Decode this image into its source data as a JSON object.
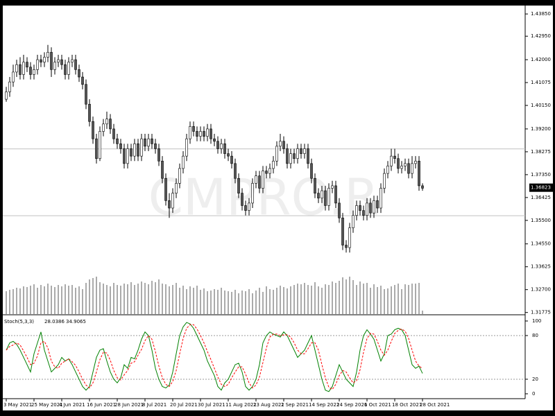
{
  "chart_data": [
    {
      "type": "candlestick",
      "watermark": "CMPRO.R",
      "current_price": 1.36823,
      "up_color": "#ffffff",
      "down_color": "#555555",
      "ylim": [
        1.3171,
        1.4419
      ],
      "yticks": [
        {
          "value": 1.4385,
          "label": "1.43850"
        },
        {
          "value": 1.4295,
          "label": "1.42950"
        },
        {
          "value": 1.42,
          "label": "1.42000"
        },
        1.41075,
        {
          "value": 1.4015,
          "label": "1.40150"
        },
        {
          "value": 1.392,
          "label": "1.39200"
        },
        1.38275,
        {
          "value": 1.3735,
          "label": "1.37350"
        },
        1.36425,
        {
          "value": 1.355,
          "label": "1.35500"
        },
        {
          "value": 1.3455,
          "label": "1.34550"
        },
        1.33625,
        {
          "value": 1.327,
          "label": "1.32700"
        },
        1.31775
      ],
      "hlines": [
        1.3839,
        1.3569
      ],
      "xticks": [
        {
          "value": 0,
          "label": "3 May 2021"
        },
        {
          "value": 8,
          "label": "25 May 2021"
        },
        {
          "value": 16,
          "label": "4 Jun 2021"
        },
        {
          "value": 24,
          "label": "16 Jun 2021"
        },
        {
          "value": 32,
          "label": "28 Jun 2021"
        },
        {
          "value": 40,
          "label": "8 Jul 2021"
        },
        {
          "value": 48,
          "label": "20 Jul 2021"
        },
        {
          "value": 56,
          "label": "30 Jul 2021"
        },
        {
          "value": 64,
          "label": "11 Aug 2021"
        },
        {
          "value": 72,
          "label": "23 Aug 2021"
        },
        {
          "value": 80,
          "label": "2 Sep 2021"
        },
        {
          "value": 88,
          "label": "14 Sep 2021"
        },
        {
          "value": 96,
          "label": "24 Sep 2021"
        },
        {
          "value": 104,
          "label": "6 Oct 2021"
        },
        {
          "value": 112,
          "label": "18 Oct 2021"
        },
        {
          "value": 120,
          "label": "28 Oct 2021"
        }
      ],
      "open": [
        1.404,
        1.407,
        1.411,
        1.415,
        1.418,
        1.414,
        1.419,
        1.417,
        1.414,
        1.416,
        1.42,
        1.419,
        1.421,
        1.423,
        1.416,
        1.419,
        1.42,
        1.418,
        1.414,
        1.419,
        1.42,
        1.416,
        1.413,
        1.41,
        1.402,
        1.395,
        1.388,
        1.38,
        1.391,
        1.394,
        1.396,
        1.392,
        1.388,
        1.386,
        1.384,
        1.378,
        1.384,
        1.381,
        1.386,
        1.381,
        1.388,
        1.385,
        1.388,
        1.386,
        1.384,
        1.379,
        1.372,
        1.363,
        1.36,
        1.366,
        1.37,
        1.376,
        1.381,
        1.388,
        1.393,
        1.391,
        1.389,
        1.391,
        1.389,
        1.392,
        1.388,
        1.387,
        1.384,
        1.386,
        1.382,
        1.381,
        1.378,
        1.372,
        1.366,
        1.361,
        1.359,
        1.362,
        1.37,
        1.373,
        1.368,
        1.375,
        1.374,
        1.376,
        1.379,
        1.385,
        1.387,
        1.384,
        1.378,
        1.382,
        1.38,
        1.384,
        1.382,
        1.384,
        1.378,
        1.372,
        1.366,
        1.364,
        1.367,
        1.361,
        1.368,
        1.369,
        1.362,
        1.356,
        1.345,
        1.344,
        1.352,
        1.357,
        1.361,
        1.359,
        1.357,
        1.362,
        1.358,
        1.363,
        1.36,
        1.368,
        1.374,
        1.377,
        1.381,
        1.38,
        1.376,
        1.377,
        1.378,
        1.374,
        1.378,
        1.379,
        1.369
      ],
      "high": [
        1.409,
        1.413,
        1.418,
        1.42,
        1.421,
        1.422,
        1.421,
        1.419,
        1.418,
        1.422,
        1.422,
        1.423,
        1.426,
        1.425,
        1.421,
        1.422,
        1.422,
        1.42,
        1.421,
        1.422,
        1.422,
        1.418,
        1.415,
        1.412,
        1.404,
        1.397,
        1.39,
        1.393,
        1.396,
        1.399,
        1.398,
        1.394,
        1.39,
        1.388,
        1.386,
        1.386,
        1.386,
        1.388,
        1.388,
        1.39,
        1.39,
        1.39,
        1.39,
        1.388,
        1.386,
        1.381,
        1.374,
        1.366,
        1.368,
        1.372,
        1.378,
        1.383,
        1.39,
        1.395,
        1.395,
        1.393,
        1.393,
        1.393,
        1.394,
        1.394,
        1.39,
        1.389,
        1.388,
        1.388,
        1.384,
        1.383,
        1.38,
        1.374,
        1.368,
        1.363,
        1.364,
        1.372,
        1.375,
        1.375,
        1.377,
        1.377,
        1.378,
        1.381,
        1.387,
        1.39,
        1.389,
        1.386,
        1.384,
        1.384,
        1.386,
        1.386,
        1.386,
        1.386,
        1.38,
        1.374,
        1.368,
        1.369,
        1.369,
        1.37,
        1.371,
        1.371,
        1.364,
        1.358,
        1.347,
        1.354,
        1.359,
        1.363,
        1.363,
        1.361,
        1.364,
        1.364,
        1.365,
        1.365,
        1.37,
        1.376,
        1.379,
        1.384,
        1.384,
        1.382,
        1.379,
        1.38,
        1.38,
        1.381,
        1.381,
        1.381,
        1.37
      ],
      "low": [
        1.403,
        1.405,
        1.409,
        1.413,
        1.412,
        1.412,
        1.415,
        1.412,
        1.412,
        1.414,
        1.417,
        1.417,
        1.419,
        1.413,
        1.414,
        1.417,
        1.416,
        1.412,
        1.412,
        1.417,
        1.414,
        1.411,
        1.408,
        1.4,
        1.393,
        1.386,
        1.378,
        1.379,
        1.389,
        1.392,
        1.39,
        1.386,
        1.384,
        1.382,
        1.376,
        1.376,
        1.379,
        1.379,
        1.379,
        1.379,
        1.383,
        1.383,
        1.384,
        1.382,
        1.377,
        1.37,
        1.361,
        1.356,
        1.358,
        1.364,
        1.368,
        1.374,
        1.379,
        1.386,
        1.389,
        1.387,
        1.387,
        1.387,
        1.387,
        1.386,
        1.385,
        1.382,
        1.382,
        1.38,
        1.379,
        1.376,
        1.37,
        1.364,
        1.359,
        1.357,
        1.357,
        1.36,
        1.368,
        1.366,
        1.366,
        1.372,
        1.372,
        1.374,
        1.377,
        1.383,
        1.382,
        1.376,
        1.376,
        1.378,
        1.378,
        1.38,
        1.38,
        1.376,
        1.37,
        1.364,
        1.362,
        1.362,
        1.359,
        1.359,
        1.366,
        1.36,
        1.354,
        1.343,
        1.342,
        1.342,
        1.35,
        1.355,
        1.357,
        1.355,
        1.355,
        1.356,
        1.356,
        1.358,
        1.358,
        1.366,
        1.372,
        1.375,
        1.378,
        1.374,
        1.374,
        1.375,
        1.372,
        1.372,
        1.376,
        1.367,
        1.367
      ],
      "close": [
        1.407,
        1.411,
        1.415,
        1.418,
        1.414,
        1.419,
        1.417,
        1.414,
        1.416,
        1.42,
        1.419,
        1.421,
        1.423,
        1.416,
        1.419,
        1.42,
        1.418,
        1.414,
        1.419,
        1.42,
        1.416,
        1.413,
        1.41,
        1.402,
        1.395,
        1.388,
        1.38,
        1.391,
        1.394,
        1.396,
        1.392,
        1.388,
        1.386,
        1.384,
        1.378,
        1.384,
        1.381,
        1.386,
        1.381,
        1.388,
        1.385,
        1.388,
        1.386,
        1.384,
        1.379,
        1.372,
        1.363,
        1.36,
        1.366,
        1.37,
        1.376,
        1.381,
        1.388,
        1.393,
        1.391,
        1.389,
        1.391,
        1.389,
        1.392,
        1.388,
        1.387,
        1.384,
        1.386,
        1.382,
        1.381,
        1.378,
        1.372,
        1.366,
        1.361,
        1.359,
        1.362,
        1.37,
        1.373,
        1.368,
        1.375,
        1.374,
        1.376,
        1.379,
        1.385,
        1.387,
        1.384,
        1.378,
        1.382,
        1.38,
        1.384,
        1.382,
        1.384,
        1.378,
        1.372,
        1.366,
        1.364,
        1.367,
        1.361,
        1.368,
        1.369,
        1.362,
        1.356,
        1.345,
        1.344,
        1.352,
        1.357,
        1.361,
        1.359,
        1.357,
        1.362,
        1.358,
        1.363,
        1.36,
        1.368,
        1.374,
        1.377,
        1.381,
        1.38,
        1.376,
        1.377,
        1.378,
        1.374,
        1.378,
        1.379,
        1.369,
        1.368
      ],
      "volume": [
        33,
        35,
        36,
        38,
        37,
        40,
        39,
        41,
        43,
        38,
        42,
        40,
        44,
        41,
        39,
        42,
        40,
        43,
        41,
        42,
        38,
        40,
        36,
        45,
        50,
        52,
        54,
        46,
        44,
        42,
        40,
        45,
        42,
        41,
        44,
        43,
        46,
        42,
        44,
        47,
        45,
        43,
        48,
        46,
        50,
        44,
        43,
        40,
        42,
        45,
        38,
        41,
        36,
        40,
        38,
        41,
        35,
        37,
        33,
        34,
        36,
        35,
        38,
        34,
        33,
        32,
        35,
        30,
        34,
        33,
        36,
        30,
        34,
        38,
        32,
        40,
        36,
        35,
        38,
        41,
        39,
        37,
        40,
        42,
        44,
        43,
        45,
        42,
        41,
        46,
        40,
        38,
        43,
        42,
        47,
        45,
        48,
        53,
        50,
        54,
        49,
        42,
        47,
        44,
        45,
        38,
        43,
        39,
        41,
        36,
        37,
        40,
        42,
        44,
        36,
        43,
        42,
        44,
        44,
        45,
        5
      ]
    },
    {
      "type": "line",
      "title": "Stoch(5,3,3)",
      "ylim": [
        -6.7,
        107.6
      ],
      "yticks": [
        100,
        80,
        20,
        0
      ],
      "levels": [
        80,
        20
      ],
      "series": [
        {
          "color": "#008000",
          "values": [
            60,
            70,
            72,
            68,
            60,
            50,
            40,
            30,
            55,
            70,
            85,
            60,
            45,
            30,
            35,
            40,
            50,
            45,
            48,
            40,
            30,
            20,
            10,
            5,
            10,
            30,
            50,
            60,
            62,
            45,
            30,
            20,
            15,
            22,
            40,
            35,
            50,
            48,
            60,
            75,
            85,
            80,
            60,
            35,
            20,
            10,
            8,
            12,
            30,
            55,
            80,
            92,
            98,
            96,
            90,
            80,
            70,
            60,
            45,
            35,
            25,
            10,
            5,
            15,
            20,
            30,
            40,
            42,
            30,
            10,
            5,
            10,
            20,
            40,
            70,
            80,
            85,
            82,
            80,
            78,
            85,
            80,
            70,
            60,
            50,
            55,
            60,
            70,
            80,
            60,
            40,
            20,
            5,
            3,
            10,
            25,
            40,
            30,
            20,
            15,
            10,
            30,
            60,
            80,
            88,
            82,
            75,
            60,
            45,
            55,
            80,
            82,
            88,
            90,
            88,
            80,
            60,
            40,
            35,
            38,
            28.0386
          ]
        },
        {
          "color": "#ff0000",
          "dashed": true,
          "values": [
            60,
            65,
            67,
            70,
            67,
            59,
            50,
            40,
            42,
            52,
            70,
            72,
            63,
            45,
            37,
            35,
            42,
            45,
            48,
            44,
            39,
            30,
            20,
            12,
            8,
            15,
            30,
            47,
            57,
            56,
            46,
            32,
            22,
            19,
            26,
            32,
            42,
            44,
            53,
            61,
            73,
            80,
            75,
            58,
            38,
            22,
            13,
            10,
            17,
            32,
            55,
            76,
            90,
            95,
            95,
            89,
            80,
            70,
            58,
            47,
            35,
            23,
            13,
            10,
            13,
            22,
            30,
            37,
            37,
            27,
            15,
            8,
            12,
            23,
            43,
            63,
            78,
            82,
            82,
            80,
            81,
            81,
            78,
            70,
            60,
            55,
            55,
            62,
            70,
            70,
            60,
            40,
            22,
            9,
            6,
            13,
            25,
            32,
            30,
            22,
            15,
            18,
            33,
            57,
            76,
            83,
            82,
            72,
            60,
            53,
            60,
            72,
            83,
            87,
            89,
            86,
            76,
            60,
            45,
            38,
            34.9065
          ]
        }
      ]
    }
  ]
}
